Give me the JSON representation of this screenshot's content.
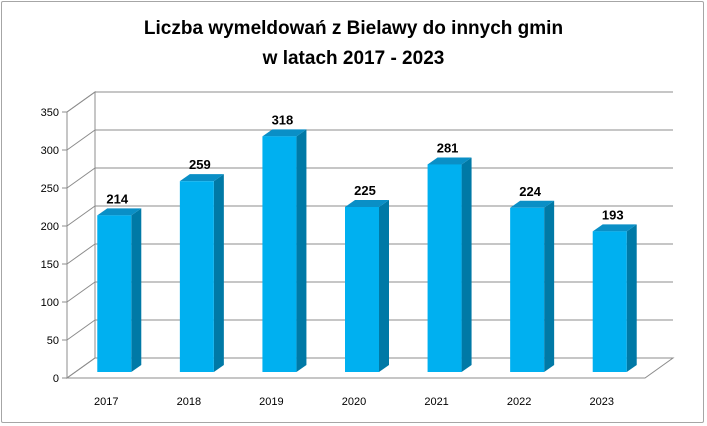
{
  "chart_data": {
    "type": "bar",
    "title_lines": [
      "Liczba wymeldowań z Bielawy do innych gmin",
      "w latach 2017 - 2023"
    ],
    "xlabel": "",
    "ylabel": "",
    "categories": [
      "2017",
      "2018",
      "2019",
      "2020",
      "2021",
      "2022",
      "2023"
    ],
    "values": [
      214,
      259,
      318,
      225,
      281,
      224,
      193
    ],
    "data_labels": [
      "214",
      "259",
      "318",
      "225",
      "281",
      "224",
      "193"
    ],
    "y_ticks": [
      "0",
      "50",
      "100",
      "150",
      "200",
      "250",
      "300",
      "350"
    ],
    "ylim": [
      0,
      350
    ],
    "grid": true,
    "legend": "none",
    "style": "3d-column",
    "colors": {
      "bar_front": "#00b0f0",
      "bar_side": "#0079a6",
      "bar_top": "#0a8fc6",
      "grid": "#8c8c8c",
      "wall_fill": "#ffffff"
    }
  }
}
